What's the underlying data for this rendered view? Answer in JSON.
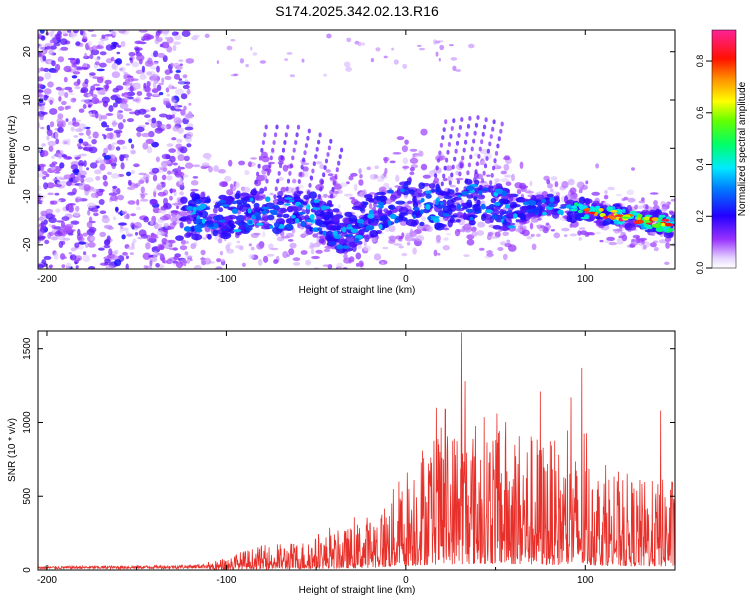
{
  "title": "S174.2025.342.02.13.R16",
  "colors": {
    "trace": "#e8302a",
    "frame": "#000000",
    "background": "#ffffff"
  },
  "chart_data": [
    {
      "type": "heatmap",
      "xlabel": "Height of straight line (km)",
      "ylabel": "Frequency (Hz)",
      "xlim": [
        -205,
        150
      ],
      "ylim": [
        -25,
        24.5
      ],
      "x_ticks": [
        -200,
        -100,
        0,
        100
      ],
      "x_tick_labels": [
        "-200",
        "-100",
        "0",
        "100"
      ],
      "y_ticks": [
        -20,
        -10,
        0,
        10,
        20
      ],
      "y_tick_labels": [
        "-20",
        "-10",
        "0",
        "10",
        "20"
      ],
      "colorbar": {
        "label": "Normalized spectral amplitude",
        "range": [
          0.0,
          0.92
        ],
        "ticks": [
          0.0,
          0.2,
          0.4,
          0.6,
          0.8
        ],
        "tick_labels": [
          "0.0",
          "0.2",
          "0.4",
          "0.6",
          "0.8"
        ],
        "colormap": "rainbow (purple-blue-cyan-green-yellow-red-magenta)"
      },
      "band_ridge": {
        "description": "dominant spectral band, frequency (Hz) vs height (km)",
        "x": [
          -125,
          -100,
          -80,
          -60,
          -45,
          -35,
          -20,
          0,
          20,
          40,
          60,
          80,
          100,
          120,
          150
        ],
        "y": [
          -14,
          -14,
          -13,
          -13,
          -15,
          -18,
          -14,
          -11,
          -12,
          -11,
          -13,
          -12,
          -13,
          -14,
          -16
        ]
      }
    },
    {
      "type": "line",
      "series_name": "SNR",
      "xlabel": "Height of straight line (km)",
      "ylabel": "SNR (10 * v/v)",
      "xlim": [
        -205,
        150
      ],
      "ylim": [
        0,
        1620
      ],
      "x_ticks": [
        -200,
        -100,
        0,
        100
      ],
      "x_tick_labels": [
        "-200",
        "-100",
        "0",
        "100"
      ],
      "y_ticks": [
        0,
        500,
        1000,
        1500
      ],
      "y_tick_labels": [
        "0",
        "500",
        "1000",
        "1500"
      ],
      "envelope": {
        "x": [
          -205,
          -150,
          -120,
          -105,
          -95,
          -80,
          -60,
          -40,
          -30,
          -20,
          -10,
          0,
          10,
          20,
          30,
          40,
          50,
          60,
          70,
          80,
          90,
          100,
          110,
          120,
          130,
          140,
          150
        ],
        "y": [
          25,
          30,
          35,
          50,
          90,
          130,
          150,
          200,
          230,
          300,
          380,
          550,
          700,
          750,
          780,
          820,
          830,
          780,
          730,
          700,
          620,
          620,
          560,
          520,
          480,
          470,
          500
        ]
      },
      "peaks": {
        "x": [
          31,
          33,
          17,
          75,
          92,
          98,
          142,
          22
        ],
        "y": [
          1610,
          1280,
          1100,
          1210,
          1170,
          1370,
          1080,
          1090
        ]
      }
    }
  ]
}
